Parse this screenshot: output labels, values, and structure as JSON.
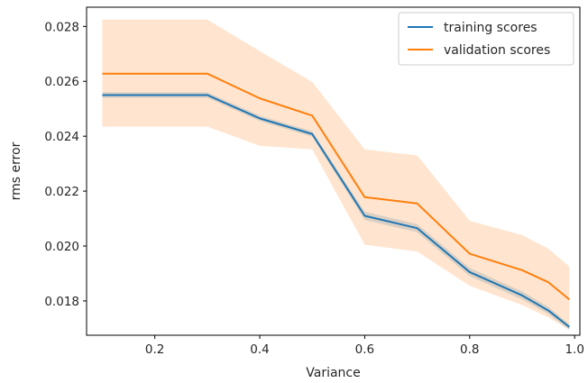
{
  "chart_data": {
    "type": "line",
    "xlabel": "Variance",
    "ylabel": "rms error",
    "xlim": [
      0.07,
      1.01
    ],
    "ylim": [
      0.01675,
      0.0287
    ],
    "xticks": [
      0.2,
      0.4,
      0.6,
      0.8,
      1.0
    ],
    "xtick_labels": [
      "0.2",
      "0.4",
      "0.6",
      "0.8",
      "1.0"
    ],
    "yticks": [
      0.018,
      0.02,
      0.022,
      0.024,
      0.026,
      0.028
    ],
    "ytick_labels": [
      "0.018",
      "0.020",
      "0.022",
      "0.024",
      "0.026",
      "0.028"
    ],
    "grid": false,
    "legend": "top-right",
    "x": [
      0.1,
      0.3,
      0.4,
      0.5,
      0.6,
      0.7,
      0.8,
      0.9,
      0.95,
      0.99
    ],
    "series": [
      {
        "name": "training scores",
        "color": "#1f77b4",
        "values": [
          0.0255,
          0.0255,
          0.02465,
          0.02408,
          0.0211,
          0.02065,
          0.01905,
          0.0182,
          0.01765,
          0.01705
        ],
        "band_lower": [
          0.0254,
          0.0254,
          0.02455,
          0.02398,
          0.02095,
          0.0205,
          0.0189,
          0.01805,
          0.01752,
          0.01695
        ],
        "band_upper": [
          0.0256,
          0.0256,
          0.02475,
          0.02418,
          0.02125,
          0.0208,
          0.0192,
          0.01835,
          0.01778,
          0.01715
        ]
      },
      {
        "name": "validation scores",
        "color": "#ff7f0e",
        "values": [
          0.02628,
          0.02628,
          0.02538,
          0.02475,
          0.02178,
          0.02155,
          0.01972,
          0.01912,
          0.01868,
          0.01805
        ],
        "band_lower": [
          0.02435,
          0.02435,
          0.02365,
          0.02352,
          0.02005,
          0.0198,
          0.01855,
          0.01785,
          0.0174,
          0.01695
        ],
        "band_upper": [
          0.02825,
          0.02825,
          0.0271,
          0.02598,
          0.02352,
          0.0233,
          0.02092,
          0.0204,
          0.0199,
          0.01925
        ]
      }
    ]
  }
}
